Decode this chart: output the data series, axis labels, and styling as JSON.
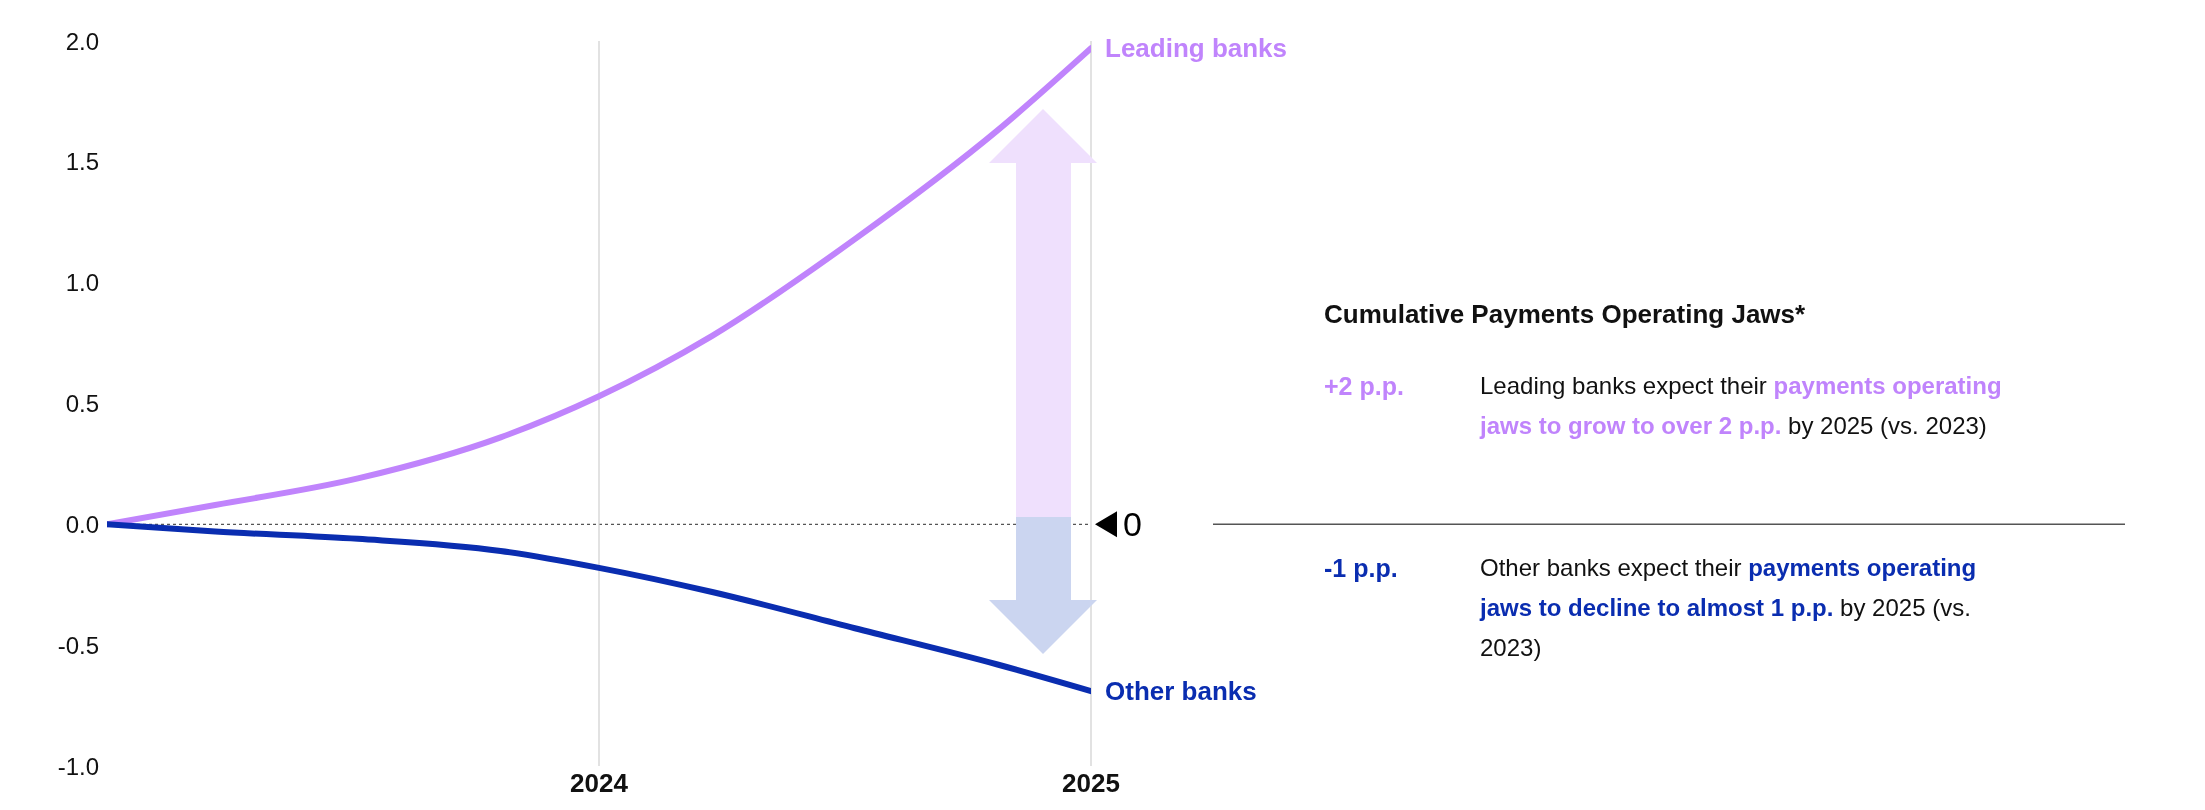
{
  "chart_data": {
    "type": "line",
    "x": [
      2023,
      2023.22,
      2023.51,
      2023.8,
      2024,
      2024.23,
      2024.52,
      2024.81,
      2025
    ],
    "series": [
      {
        "name": "Leading banks",
        "color": "#c084fc",
        "values": [
          0.0,
          0.08,
          0.19,
          0.36,
          0.53,
          0.78,
          1.18,
          1.63,
          1.97
        ]
      },
      {
        "name": "Other banks",
        "color": "#0a2db0",
        "values": [
          0.0,
          -0.03,
          -0.06,
          -0.11,
          -0.18,
          -0.28,
          -0.43,
          -0.58,
          -0.69
        ]
      }
    ],
    "xlim": [
      2023,
      2025
    ],
    "xticks": [
      2024,
      2025
    ],
    "ylim": [
      -1.0,
      2.0
    ],
    "yticks": [
      {
        "value": -1,
        "label": "-1.0"
      },
      {
        "value": -0.5,
        "label": "-0.5"
      },
      {
        "value": 0,
        "label": "0.0"
      },
      {
        "value": 0.5,
        "label": "0.5"
      },
      {
        "value": 1,
        "label": "1.0"
      },
      {
        "value": 1.5,
        "label": "1.5"
      },
      {
        "value": 2,
        "label": "2.0"
      }
    ],
    "marker": "none",
    "line_style": "solid",
    "ref_lines": [
      {
        "axis": "y",
        "value": 0,
        "label": "0",
        "line_style": "dotted"
      },
      {
        "axis": "x",
        "value": 2024,
        "color": "#cfcfcf"
      },
      {
        "axis": "x",
        "value": 2025,
        "color": "#cfcfcf"
      }
    ],
    "annotations": [
      "Cumulative Payments Operating Jaws*",
      "+2 p.p.",
      "Leading banks expect their",
      "payments operating jaws to grow to over 2 p.p.",
      "by 2025 (vs. 2023)",
      "-1 p.p.",
      "Other banks expect their",
      "payments operating jaws to decline to almost 1 p.p.",
      "by 2025 (vs. 2023)"
    ]
  }
}
